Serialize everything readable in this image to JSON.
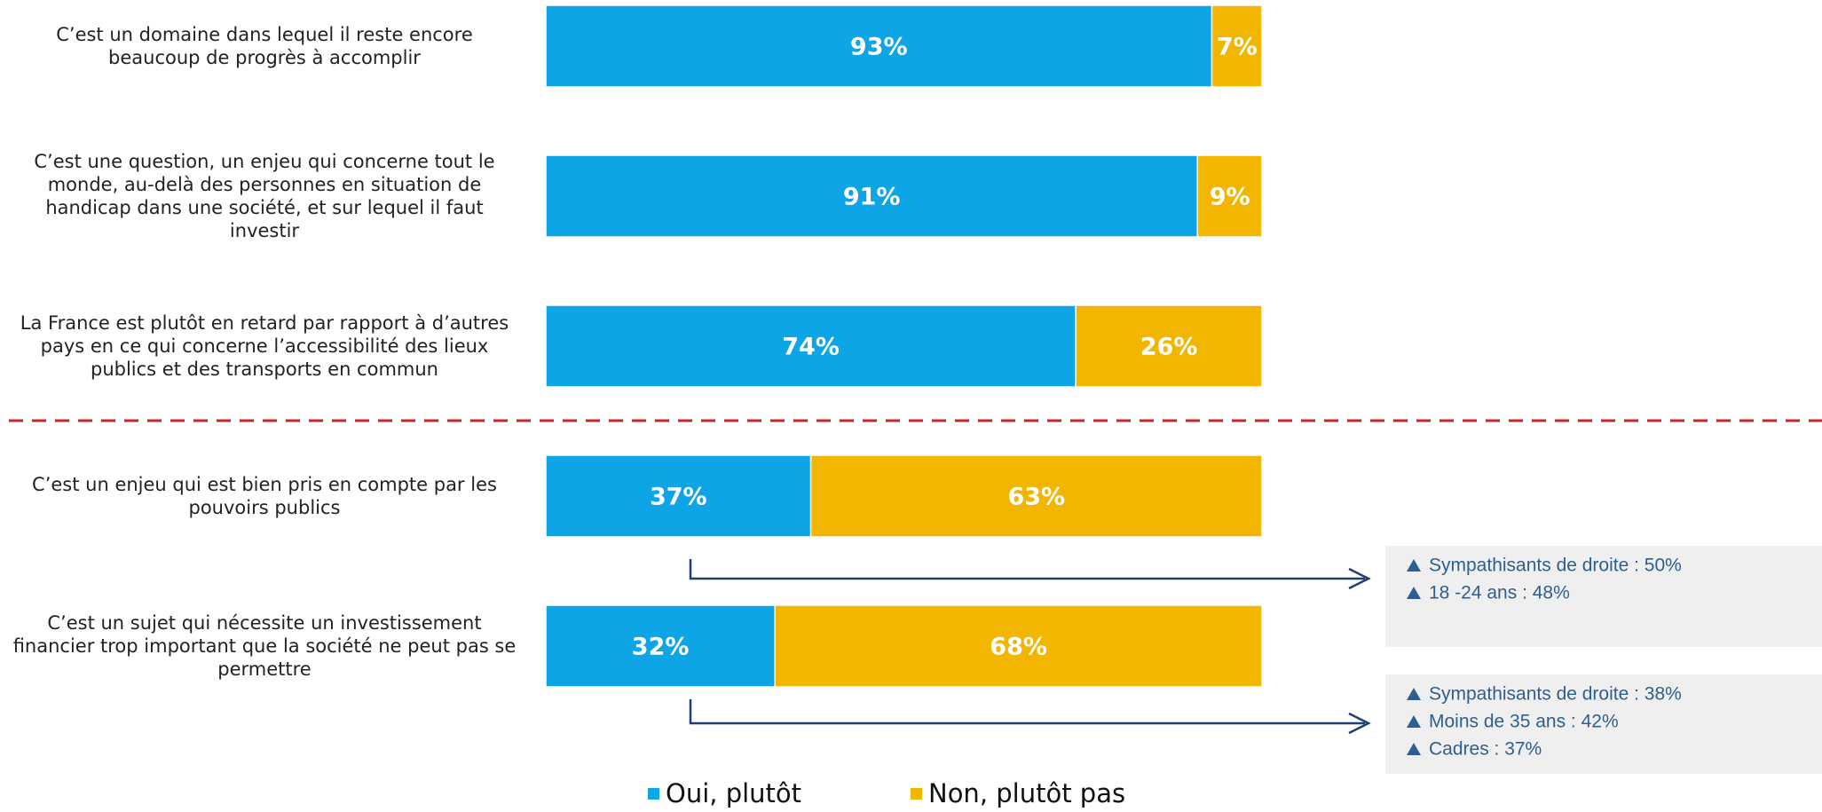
{
  "chart_data": {
    "type": "stacked-bar-horizontal",
    "categories": [
      "C’est un domaine dans lequel il reste encore beaucoup de progrès à accomplir",
      "C’est une question, un enjeu qui concerne tout le monde, au-delà des personnes en situation de handicap dans une société, et sur lequel il faut investir",
      "La France est plutôt en retard par rapport à d’autres pays en ce qui concerne l’accessibilité des lieux publics et des transports en commun",
      "C’est un enjeu qui est bien pris en compte par les pouvoirs publics",
      "C’est un sujet qui nécessite un investissement financier trop important que la société ne peut pas se permettre"
    ],
    "series": [
      {
        "name": "Oui, plutôt",
        "color": "#0ea5e6",
        "values": [
          93,
          91,
          74,
          37,
          32
        ],
        "value_labels": [
          "93%",
          "91%",
          "74%",
          "37%",
          "32%"
        ]
      },
      {
        "name": "Non, plutôt pas",
        "color": "#f2b600",
        "values": [
          7,
          9,
          26,
          63,
          68
        ],
        "value_labels": [
          "7%",
          "9%",
          "26%",
          "63%",
          "68%"
        ]
      }
    ],
    "xlim": [
      0,
      100
    ],
    "annotations": [
      {
        "items": [
          "Sympathisants de droite : 50%",
          "18 -24 ans : 48%"
        ]
      },
      {
        "items": [
          "Sympathisants de droite : 38%",
          "Moins de 35 ans : 42%",
          "Cadres : 37%"
        ]
      }
    ]
  }
}
